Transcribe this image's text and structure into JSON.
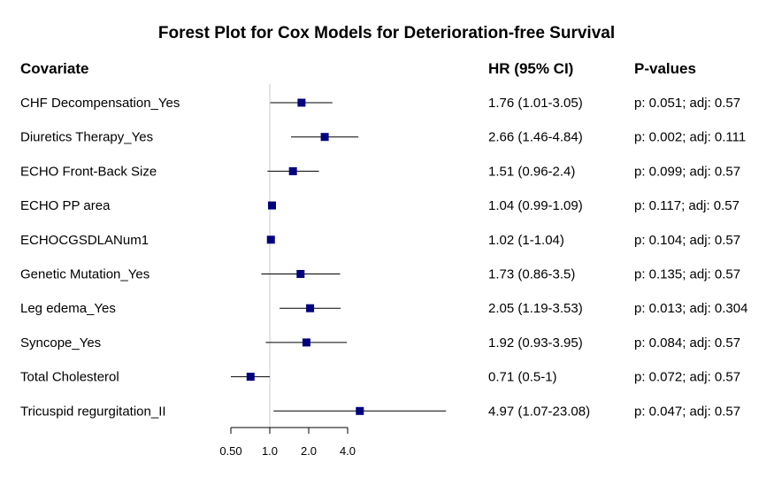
{
  "chart_data": {
    "type": "forest",
    "title": "Forest Plot for Cox Models for Deterioration-free Survival",
    "columns": {
      "covariate": "Covariate",
      "hr": "HR (95% CI)",
      "p": "P-values"
    },
    "x_scale": "log",
    "xlim": [
      0.5,
      5.0
    ],
    "x_ticks": [
      {
        "value": 0.5,
        "label": "0.50"
      },
      {
        "value": 1.0,
        "label": "1.0"
      },
      {
        "value": 2.0,
        "label": "2.0"
      },
      {
        "value": 4.0,
        "label": "4.0"
      }
    ],
    "reference_line": 1.0,
    "rows": [
      {
        "covariate": "CHF Decompensation_Yes",
        "hr": 1.76,
        "lo": 1.01,
        "hi": 3.05,
        "hr_text": "1.76 (1.01-3.05)",
        "p_text": "p: 0.051; adj: 0.57"
      },
      {
        "covariate": "Diuretics Therapy_Yes",
        "hr": 2.66,
        "lo": 1.46,
        "hi": 4.84,
        "hr_text": "2.66 (1.46-4.84)",
        "p_text": "p: 0.002; adj: 0.111"
      },
      {
        "covariate": "ECHO Front-Back Size",
        "hr": 1.51,
        "lo": 0.96,
        "hi": 2.4,
        "hr_text": "1.51 (0.96-2.4)",
        "p_text": "p: 0.099; adj: 0.57"
      },
      {
        "covariate": "ECHO PP area",
        "hr": 1.04,
        "lo": 0.99,
        "hi": 1.09,
        "hr_text": "1.04 (0.99-1.09)",
        "p_text": "p: 0.117; adj: 0.57"
      },
      {
        "covariate": "ECHOCGSDLANum1",
        "hr": 1.02,
        "lo": 1.0,
        "hi": 1.04,
        "hr_text": "1.02 (1-1.04)",
        "p_text": "p: 0.104; adj: 0.57"
      },
      {
        "covariate": "Genetic Mutation_Yes",
        "hr": 1.73,
        "lo": 0.86,
        "hi": 3.5,
        "hr_text": "1.73 (0.86-3.5)",
        "p_text": "p: 0.135; adj: 0.57"
      },
      {
        "covariate": "Leg edema_Yes",
        "hr": 2.05,
        "lo": 1.19,
        "hi": 3.53,
        "hr_text": "2.05 (1.19-3.53)",
        "p_text": "p: 0.013; adj: 0.304"
      },
      {
        "covariate": "Syncope_Yes",
        "hr": 1.92,
        "lo": 0.93,
        "hi": 3.95,
        "hr_text": "1.92 (0.93-3.95)",
        "p_text": "p: 0.084; adj: 0.57"
      },
      {
        "covariate": "Total Cholesterol",
        "hr": 0.71,
        "lo": 0.5,
        "hi": 1.0,
        "hr_text": "0.71 (0.5-1)",
        "p_text": "p: 0.072; adj: 0.57"
      },
      {
        "covariate": "Tricuspid regurgitation_II",
        "hr": 4.97,
        "lo": 1.07,
        "hi": 23.08,
        "hr_text": "4.97 (1.07-23.08)",
        "p_text": "p: 0.047; adj: 0.57"
      }
    ],
    "colors": {
      "marker": "#00007f",
      "ci_line": "#000000",
      "reference": "#c8c8c8"
    }
  }
}
